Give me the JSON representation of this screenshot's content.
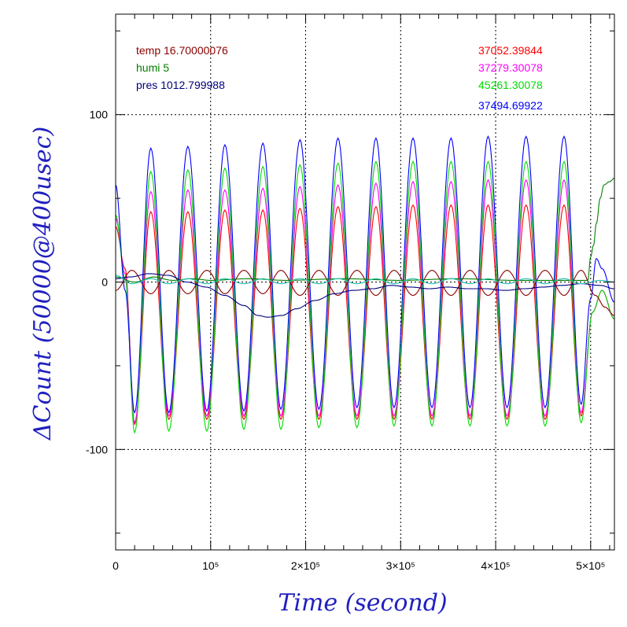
{
  "chart_data": {
    "type": "line",
    "xlabel": "Time (second)",
    "ylabel": "ΔCount (50000@400usec)",
    "xlim": [
      0,
      525000
    ],
    "ylim": [
      -160,
      160
    ],
    "grid": true,
    "x_tick_labels": [
      {
        "value": 0,
        "label": "0"
      },
      {
        "value": 100000,
        "label": "10⁵"
      },
      {
        "value": 200000,
        "label": "2×10⁵"
      },
      {
        "value": 300000,
        "label": "3×10⁵"
      },
      {
        "value": 400000,
        "label": "4×10⁵"
      },
      {
        "value": 500000,
        "label": "5×10⁵"
      }
    ],
    "y_tick_labels": [
      {
        "value": 100,
        "label": "100"
      },
      {
        "value": 0,
        "label": "0"
      },
      {
        "value": -100,
        "label": "-100"
      }
    ],
    "legend_left": [
      {
        "text": "temp 16.70000076",
        "color": "#8b0000"
      },
      {
        "text": "humi 5",
        "color": "#008000"
      },
      {
        "text": "pres 1012.799988",
        "color": "#00007f"
      }
    ],
    "legend_right": [
      {
        "text": "37052.39844",
        "color": "#ff0000"
      },
      {
        "text": "37279.30078",
        "color": "#ff00ff"
      },
      {
        "text": "45261.30078",
        "color": "#00dd00"
      },
      {
        "text": "37494.69922",
        "color": "#0000ff"
      }
    ],
    "series": [
      {
        "name": "37052.39844",
        "color": "#ff0000",
        "points": [
          [
            0,
            33
          ],
          [
            10000,
            8
          ],
          [
            20000,
            -85
          ],
          [
            37000,
            42
          ],
          [
            56000,
            -82
          ],
          [
            76000,
            42
          ],
          [
            96000,
            -82
          ],
          [
            115000,
            43
          ],
          [
            135000,
            -82
          ],
          [
            155000,
            43
          ],
          [
            174000,
            -82
          ],
          [
            194000,
            44
          ],
          [
            214000,
            -82
          ],
          [
            234000,
            45
          ],
          [
            254000,
            -82
          ],
          [
            274000,
            45
          ],
          [
            293000,
            -82
          ],
          [
            313000,
            46
          ],
          [
            333000,
            -82
          ],
          [
            353000,
            46
          ],
          [
            373000,
            -82
          ],
          [
            392000,
            46
          ],
          [
            412000,
            -82
          ],
          [
            432000,
            46
          ],
          [
            452000,
            -82
          ],
          [
            472000,
            46
          ],
          [
            490000,
            -80
          ],
          [
            502000,
            -18
          ],
          [
            512000,
            -5
          ],
          [
            525000,
            -22
          ]
        ]
      },
      {
        "name": "37279.30078",
        "color": "#ff00ff",
        "points": [
          [
            0,
            38
          ],
          [
            10000,
            5
          ],
          [
            20000,
            -84
          ],
          [
            37000,
            54
          ],
          [
            56000,
            -80
          ],
          [
            76000,
            55
          ],
          [
            96000,
            -80
          ],
          [
            115000,
            55
          ],
          [
            135000,
            -80
          ],
          [
            155000,
            56
          ],
          [
            174000,
            -80
          ],
          [
            194000,
            57
          ],
          [
            214000,
            -80
          ],
          [
            234000,
            58
          ],
          [
            254000,
            -80
          ],
          [
            274000,
            59
          ],
          [
            293000,
            -80
          ],
          [
            313000,
            60
          ],
          [
            333000,
            -80
          ],
          [
            353000,
            60
          ],
          [
            373000,
            -80
          ],
          [
            392000,
            61
          ],
          [
            412000,
            -80
          ],
          [
            432000,
            61
          ],
          [
            452000,
            -80
          ],
          [
            472000,
            61
          ],
          [
            490000,
            -78
          ],
          [
            502000,
            -18
          ],
          [
            512000,
            -5
          ],
          [
            525000,
            -22
          ]
        ]
      },
      {
        "name": "45261.30078",
        "color": "#00dd00",
        "points": [
          [
            0,
            40
          ],
          [
            10000,
            2
          ],
          [
            20000,
            -90
          ],
          [
            37000,
            66
          ],
          [
            56000,
            -89
          ],
          [
            76000,
            67
          ],
          [
            96000,
            -89
          ],
          [
            115000,
            68
          ],
          [
            135000,
            -88
          ],
          [
            155000,
            69
          ],
          [
            174000,
            -88
          ],
          [
            194000,
            70
          ],
          [
            214000,
            -87
          ],
          [
            234000,
            71
          ],
          [
            254000,
            -87
          ],
          [
            274000,
            72
          ],
          [
            293000,
            -86
          ],
          [
            313000,
            72
          ],
          [
            333000,
            -86
          ],
          [
            353000,
            72
          ],
          [
            373000,
            -86
          ],
          [
            392000,
            72
          ],
          [
            412000,
            -86
          ],
          [
            432000,
            72
          ],
          [
            452000,
            -86
          ],
          [
            472000,
            72
          ],
          [
            490000,
            -84
          ],
          [
            502000,
            -18
          ],
          [
            512000,
            -5
          ],
          [
            525000,
            -22
          ]
        ]
      },
      {
        "name": "37494.69922",
        "color": "#0000ff",
        "points": [
          [
            0,
            58
          ],
          [
            10000,
            -5
          ],
          [
            20000,
            -78
          ],
          [
            37000,
            80
          ],
          [
            56000,
            -78
          ],
          [
            76000,
            81
          ],
          [
            96000,
            -77
          ],
          [
            115000,
            82
          ],
          [
            135000,
            -77
          ],
          [
            155000,
            83
          ],
          [
            174000,
            -76
          ],
          [
            194000,
            85
          ],
          [
            214000,
            -76
          ],
          [
            234000,
            86
          ],
          [
            254000,
            -75
          ],
          [
            274000,
            86
          ],
          [
            293000,
            -75
          ],
          [
            313000,
            86
          ],
          [
            333000,
            -75
          ],
          [
            353000,
            86
          ],
          [
            373000,
            -75
          ],
          [
            392000,
            87
          ],
          [
            412000,
            -75
          ],
          [
            432000,
            87
          ],
          [
            452000,
            -75
          ],
          [
            472000,
            87
          ],
          [
            490000,
            -73
          ],
          [
            500000,
            -10
          ],
          [
            506000,
            14
          ],
          [
            512000,
            8
          ],
          [
            525000,
            -12
          ]
        ]
      },
      {
        "name": "temp 16.70000076",
        "color": "#8b0000",
        "points": [
          [
            0,
            -5
          ],
          [
            17000,
            7
          ],
          [
            37000,
            -7
          ],
          [
            56000,
            7
          ],
          [
            76000,
            -7
          ],
          [
            96000,
            7
          ],
          [
            115000,
            -7
          ],
          [
            135000,
            7
          ],
          [
            155000,
            -7
          ],
          [
            174000,
            7
          ],
          [
            194000,
            -8
          ],
          [
            214000,
            7
          ],
          [
            234000,
            -8
          ],
          [
            254000,
            7
          ],
          [
            274000,
            -8
          ],
          [
            293000,
            7
          ],
          [
            313000,
            -8
          ],
          [
            333000,
            7
          ],
          [
            353000,
            -8
          ],
          [
            373000,
            7
          ],
          [
            392000,
            -8
          ],
          [
            412000,
            7
          ],
          [
            432000,
            -8
          ],
          [
            452000,
            7
          ],
          [
            472000,
            -8
          ],
          [
            490000,
            7
          ],
          [
            505000,
            -8
          ],
          [
            515000,
            -15
          ],
          [
            525000,
            -20
          ]
        ]
      },
      {
        "name": "humi 5",
        "color": "#008000",
        "points": [
          [
            0,
            3
          ],
          [
            20000,
            0
          ],
          [
            40000,
            3
          ],
          [
            60000,
            1
          ],
          [
            80000,
            2
          ],
          [
            100000,
            1
          ],
          [
            140000,
            2
          ],
          [
            180000,
            1
          ],
          [
            240000,
            2
          ],
          [
            300000,
            1
          ],
          [
            360000,
            2
          ],
          [
            420000,
            1
          ],
          [
            480000,
            1
          ],
          [
            497000,
            1
          ],
          [
            500000,
            15
          ],
          [
            503000,
            22
          ],
          [
            506000,
            35
          ],
          [
            510000,
            50
          ],
          [
            514000,
            58
          ],
          [
            520000,
            60
          ],
          [
            525000,
            62
          ]
        ]
      },
      {
        "name": "pres 1012.799988",
        "color": "#00007f",
        "points": [
          [
            0,
            2
          ],
          [
            15000,
            3
          ],
          [
            35000,
            5
          ],
          [
            55000,
            4
          ],
          [
            75000,
            0
          ],
          [
            95000,
            -3
          ],
          [
            115000,
            -8
          ],
          [
            135000,
            -14
          ],
          [
            150000,
            -20
          ],
          [
            160000,
            -21
          ],
          [
            175000,
            -20
          ],
          [
            190000,
            -16
          ],
          [
            210000,
            -11
          ],
          [
            230000,
            -7
          ],
          [
            250000,
            -5
          ],
          [
            270000,
            -4
          ],
          [
            290000,
            -2
          ],
          [
            310000,
            -3
          ],
          [
            330000,
            -4
          ],
          [
            350000,
            -3
          ],
          [
            370000,
            -4
          ],
          [
            390000,
            -4
          ],
          [
            410000,
            -5
          ],
          [
            430000,
            -4
          ],
          [
            450000,
            -3
          ],
          [
            470000,
            -2
          ],
          [
            490000,
            -1
          ],
          [
            510000,
            -2
          ],
          [
            525000,
            -4
          ]
        ]
      },
      {
        "name": "",
        "color": "#20c0b0",
        "points": [
          [
            0,
            4
          ],
          [
            17000,
            -1
          ],
          [
            37000,
            2
          ],
          [
            56000,
            -1
          ],
          [
            76000,
            2
          ],
          [
            96000,
            -1
          ],
          [
            115000,
            2
          ],
          [
            135000,
            -1
          ],
          [
            155000,
            2
          ],
          [
            174000,
            -1
          ],
          [
            194000,
            2
          ],
          [
            214000,
            -1
          ],
          [
            234000,
            2
          ],
          [
            254000,
            -1
          ],
          [
            274000,
            2
          ],
          [
            293000,
            -1
          ],
          [
            313000,
            2
          ],
          [
            333000,
            -1
          ],
          [
            353000,
            2
          ],
          [
            373000,
            -1
          ],
          [
            392000,
            2
          ],
          [
            412000,
            -1
          ],
          [
            432000,
            2
          ],
          [
            452000,
            -1
          ],
          [
            472000,
            2
          ],
          [
            490000,
            -1
          ],
          [
            510000,
            1
          ],
          [
            525000,
            0
          ]
        ]
      }
    ]
  }
}
